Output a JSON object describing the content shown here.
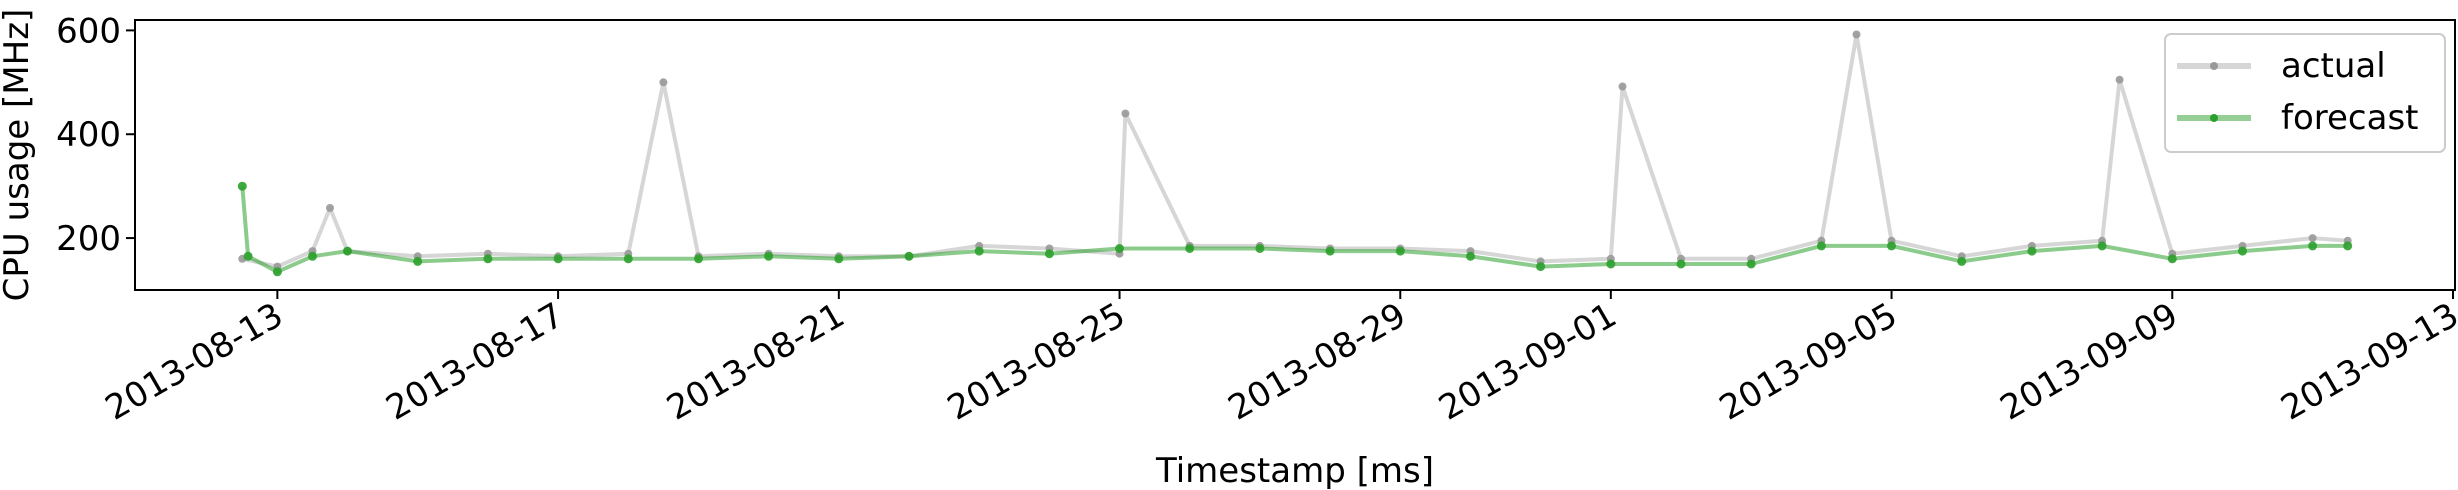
{
  "chart_data": {
    "type": "line",
    "xlabel": "Timestamp [ms]",
    "ylabel": "CPU usage [MHz]",
    "ylim": [
      100,
      620
    ],
    "xlim": [
      "2013-08-11",
      "2013-09-13"
    ],
    "yticks": [
      {
        "value": 200,
        "label": "200"
      },
      {
        "value": 400,
        "label": "400"
      },
      {
        "value": 600,
        "label": "600"
      }
    ],
    "xticks": [
      {
        "value": "2013-08-13",
        "label": "2013-08-13"
      },
      {
        "value": "2013-08-17",
        "label": "2013-08-17"
      },
      {
        "value": "2013-08-21",
        "label": "2013-08-21"
      },
      {
        "value": "2013-08-25",
        "label": "2013-08-25"
      },
      {
        "value": "2013-08-29",
        "label": "2013-08-29"
      },
      {
        "value": "2013-09-01",
        "label": "2013-09-01"
      },
      {
        "value": "2013-09-05",
        "label": "2013-09-05"
      },
      {
        "value": "2013-09-09",
        "label": "2013-09-09"
      },
      {
        "value": "2013-09-13",
        "label": "2013-09-13"
      }
    ],
    "legend": {
      "placement": "top-right"
    },
    "grid": false,
    "series": [
      {
        "name": "actual",
        "color": "#999999",
        "points": [
          {
            "x": "2013-08-12T12:00",
            "y": 160
          },
          {
            "x": "2013-08-13T00:00",
            "y": 145
          },
          {
            "x": "2013-08-13T12:00",
            "y": 175
          },
          {
            "x": "2013-08-13T18:00",
            "y": 258
          },
          {
            "x": "2013-08-14T00:00",
            "y": 175
          },
          {
            "x": "2013-08-15T00:00",
            "y": 165
          },
          {
            "x": "2013-08-16T00:00",
            "y": 170
          },
          {
            "x": "2013-08-17T00:00",
            "y": 165
          },
          {
            "x": "2013-08-18T00:00",
            "y": 170
          },
          {
            "x": "2013-08-18T12:00",
            "y": 500
          },
          {
            "x": "2013-08-19T00:00",
            "y": 165
          },
          {
            "x": "2013-08-20T00:00",
            "y": 170
          },
          {
            "x": "2013-08-21T00:00",
            "y": 165
          },
          {
            "x": "2013-08-22T00:00",
            "y": 165
          },
          {
            "x": "2013-08-23T00:00",
            "y": 185
          },
          {
            "x": "2013-08-24T00:00",
            "y": 180
          },
          {
            "x": "2013-08-25T00:00",
            "y": 170
          },
          {
            "x": "2013-08-25T02:00",
            "y": 440
          },
          {
            "x": "2013-08-26T00:00",
            "y": 185
          },
          {
            "x": "2013-08-27T00:00",
            "y": 185
          },
          {
            "x": "2013-08-28T00:00",
            "y": 180
          },
          {
            "x": "2013-08-29T00:00",
            "y": 180
          },
          {
            "x": "2013-08-30T00:00",
            "y": 175
          },
          {
            "x": "2013-08-31T00:00",
            "y": 155
          },
          {
            "x": "2013-09-01T00:00",
            "y": 160
          },
          {
            "x": "2013-09-01T04:00",
            "y": 492
          },
          {
            "x": "2013-09-02T00:00",
            "y": 160
          },
          {
            "x": "2013-09-03T00:00",
            "y": 160
          },
          {
            "x": "2013-09-04T00:00",
            "y": 195
          },
          {
            "x": "2013-09-04T12:00",
            "y": 592
          },
          {
            "x": "2013-09-05T00:00",
            "y": 195
          },
          {
            "x": "2013-09-06T00:00",
            "y": 165
          },
          {
            "x": "2013-09-07T00:00",
            "y": 185
          },
          {
            "x": "2013-09-08T00:00",
            "y": 195
          },
          {
            "x": "2013-09-08T06:00",
            "y": 505
          },
          {
            "x": "2013-09-09T00:00",
            "y": 170
          },
          {
            "x": "2013-09-10T00:00",
            "y": 185
          },
          {
            "x": "2013-09-11T00:00",
            "y": 200
          },
          {
            "x": "2013-09-11T12:00",
            "y": 195
          }
        ]
      },
      {
        "name": "forecast",
        "color": "#2ca02c",
        "points": [
          {
            "x": "2013-08-12T12:00",
            "y": 300
          },
          {
            "x": "2013-08-12T14:00",
            "y": 165
          },
          {
            "x": "2013-08-13T00:00",
            "y": 135
          },
          {
            "x": "2013-08-13T12:00",
            "y": 165
          },
          {
            "x": "2013-08-14T00:00",
            "y": 175
          },
          {
            "x": "2013-08-15T00:00",
            "y": 155
          },
          {
            "x": "2013-08-16T00:00",
            "y": 160
          },
          {
            "x": "2013-08-17T00:00",
            "y": 160
          },
          {
            "x": "2013-08-18T00:00",
            "y": 160
          },
          {
            "x": "2013-08-19T00:00",
            "y": 160
          },
          {
            "x": "2013-08-20T00:00",
            "y": 165
          },
          {
            "x": "2013-08-21T00:00",
            "y": 160
          },
          {
            "x": "2013-08-22T00:00",
            "y": 165
          },
          {
            "x": "2013-08-23T00:00",
            "y": 175
          },
          {
            "x": "2013-08-24T00:00",
            "y": 170
          },
          {
            "x": "2013-08-25T00:00",
            "y": 180
          },
          {
            "x": "2013-08-26T00:00",
            "y": 180
          },
          {
            "x": "2013-08-27T00:00",
            "y": 180
          },
          {
            "x": "2013-08-28T00:00",
            "y": 175
          },
          {
            "x": "2013-08-29T00:00",
            "y": 175
          },
          {
            "x": "2013-08-30T00:00",
            "y": 165
          },
          {
            "x": "2013-08-31T00:00",
            "y": 145
          },
          {
            "x": "2013-09-01T00:00",
            "y": 150
          },
          {
            "x": "2013-09-02T00:00",
            "y": 150
          },
          {
            "x": "2013-09-03T00:00",
            "y": 150
          },
          {
            "x": "2013-09-04T00:00",
            "y": 185
          },
          {
            "x": "2013-09-05T00:00",
            "y": 185
          },
          {
            "x": "2013-09-06T00:00",
            "y": 155
          },
          {
            "x": "2013-09-07T00:00",
            "y": 175
          },
          {
            "x": "2013-09-08T00:00",
            "y": 185
          },
          {
            "x": "2013-09-09T00:00",
            "y": 160
          },
          {
            "x": "2013-09-10T00:00",
            "y": 175
          },
          {
            "x": "2013-09-11T00:00",
            "y": 185
          },
          {
            "x": "2013-09-11T12:00",
            "y": 185
          }
        ]
      }
    ]
  }
}
